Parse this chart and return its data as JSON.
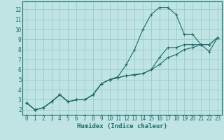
{
  "xlabel": "Humidex (Indice chaleur)",
  "xlim": [
    -0.5,
    23.5
  ],
  "ylim": [
    1.5,
    12.8
  ],
  "xticks": [
    0,
    1,
    2,
    3,
    4,
    5,
    6,
    7,
    8,
    9,
    10,
    11,
    12,
    13,
    14,
    15,
    16,
    17,
    18,
    19,
    20,
    21,
    22,
    23
  ],
  "yticks": [
    2,
    3,
    4,
    5,
    6,
    7,
    8,
    9,
    10,
    11,
    12
  ],
  "bg_color": "#c0e4e4",
  "grid_color": "#98cccc",
  "line_color": "#1a6b6b",
  "line1_y": [
    2.7,
    2.0,
    2.2,
    2.8,
    3.5,
    2.8,
    3.0,
    3.0,
    3.5,
    4.6,
    5.0,
    5.3,
    6.5,
    8.0,
    10.0,
    11.5,
    12.2,
    12.2,
    11.5,
    9.5,
    9.5,
    8.5,
    8.5,
    9.2
  ],
  "line2_y": [
    2.7,
    2.0,
    2.2,
    2.8,
    3.5,
    2.8,
    3.0,
    3.0,
    3.5,
    4.6,
    5.0,
    5.2,
    5.4,
    5.5,
    5.6,
    6.0,
    7.2,
    8.2,
    8.2,
    8.5,
    8.5,
    8.5,
    7.8,
    9.2
  ],
  "line3_y": [
    2.7,
    2.0,
    2.2,
    2.8,
    3.5,
    2.8,
    3.0,
    3.0,
    3.5,
    4.6,
    5.0,
    5.2,
    5.4,
    5.5,
    5.6,
    6.0,
    6.5,
    7.2,
    7.5,
    8.0,
    8.2,
    8.5,
    8.5,
    9.2
  ],
  "tick_fontsize": 5.5,
  "xlabel_fontsize": 6.5
}
